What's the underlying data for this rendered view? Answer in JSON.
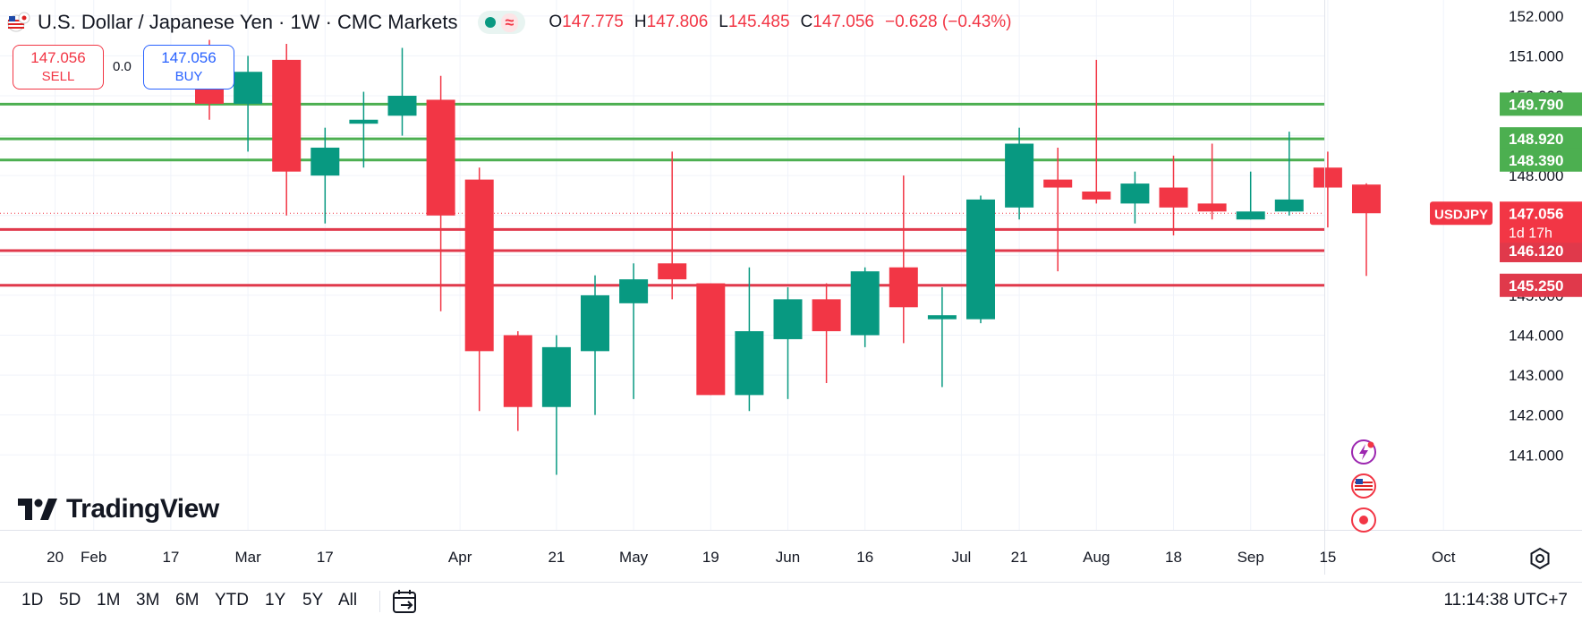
{
  "header": {
    "symbol_title": "U.S. Dollar / Japanese Yen · 1W · CMC Markets",
    "ohlc": {
      "o_label": "O",
      "o_value": "147.775",
      "h_label": "H",
      "h_value": "147.806",
      "l_label": "L",
      "l_value": "145.485",
      "c_label": "C",
      "c_value": "147.056",
      "change": "−0.628 (−0.43%)"
    }
  },
  "trade": {
    "sell_price": "147.056",
    "sell_label": "SELL",
    "spread": "0.0",
    "buy_price": "147.056",
    "buy_label": "BUY"
  },
  "logo_text": "TradingView",
  "timeframes": [
    "1D",
    "5D",
    "1M",
    "3M",
    "6M",
    "YTD",
    "1Y",
    "5Y",
    "All"
  ],
  "clock": "11:14:38 UTC+7",
  "icons": {
    "flag": "us-jp-flag-icon",
    "status": "market-status-icon",
    "settings": "gear-icon",
    "calendar": "date-range-icon"
  },
  "colors": {
    "up": "#089981",
    "down": "#f23645",
    "resistance": "#4caf50",
    "support": "#e0394b",
    "buy": "#2962ff"
  },
  "chart_data": {
    "type": "candlestick",
    "symbol_badge": "USDJPY",
    "countdown": "1d 17h",
    "last_price": 147.056,
    "ylim": [
      140.4,
      152.4
    ],
    "y_ticks": [
      141.0,
      142.0,
      143.0,
      144.0,
      145.0,
      146.0,
      147.0,
      148.0,
      149.0,
      150.0,
      151.0,
      152.0
    ],
    "y_tick_labels": [
      "141.000",
      "142.000",
      "143.000",
      "144.000",
      "145.000",
      "146.000",
      "147.000",
      "148.000",
      "149.000",
      "150.000",
      "151.000",
      "152.000"
    ],
    "x_tick_labels": [
      {
        "label": "20",
        "index": -4
      },
      {
        "label": "Feb",
        "index": -3
      },
      {
        "label": "17",
        "index": -1
      },
      {
        "label": "Mar",
        "index": 1
      },
      {
        "label": "17",
        "index": 3
      },
      {
        "label": "Apr",
        "index": 6.5
      },
      {
        "label": "21",
        "index": 9
      },
      {
        "label": "May",
        "index": 11
      },
      {
        "label": "19",
        "index": 13
      },
      {
        "label": "Jun",
        "index": 15
      },
      {
        "label": "16",
        "index": 17
      },
      {
        "label": "Jul",
        "index": 19.5
      },
      {
        "label": "21",
        "index": 21
      },
      {
        "label": "Aug",
        "index": 23
      },
      {
        "label": "18",
        "index": 25
      },
      {
        "label": "Sep",
        "index": 27
      },
      {
        "label": "15",
        "index": 29
      },
      {
        "label": "Oct",
        "index": 32
      }
    ],
    "candles": [
      {
        "o": 151.1,
        "h": 151.4,
        "l": 149.4,
        "c": 149.8
      },
      {
        "o": 149.8,
        "h": 151.0,
        "l": 148.6,
        "c": 150.6
      },
      {
        "o": 150.9,
        "h": 151.3,
        "l": 147.0,
        "c": 148.1
      },
      {
        "o": 148.0,
        "h": 149.2,
        "l": 146.8,
        "c": 148.7
      },
      {
        "o": 149.3,
        "h": 150.1,
        "l": 148.2,
        "c": 149.4
      },
      {
        "o": 149.5,
        "h": 151.2,
        "l": 149.0,
        "c": 150.0
      },
      {
        "o": 149.9,
        "h": 150.5,
        "l": 144.6,
        "c": 147.0
      },
      {
        "o": 147.9,
        "h": 148.2,
        "l": 142.1,
        "c": 143.6
      },
      {
        "o": 144.0,
        "h": 144.1,
        "l": 141.6,
        "c": 142.2
      },
      {
        "o": 142.2,
        "h": 144.0,
        "l": 140.5,
        "c": 143.7
      },
      {
        "o": 143.6,
        "h": 145.5,
        "l": 142.0,
        "c": 145.0
      },
      {
        "o": 144.8,
        "h": 145.8,
        "l": 142.4,
        "c": 145.4
      },
      {
        "o": 145.8,
        "h": 148.6,
        "l": 144.9,
        "c": 145.4
      },
      {
        "o": 145.3,
        "h": 145.2,
        "l": 142.5,
        "c": 142.5
      },
      {
        "o": 142.5,
        "h": 145.7,
        "l": 142.1,
        "c": 144.1
      },
      {
        "o": 143.9,
        "h": 145.2,
        "l": 142.4,
        "c": 144.9
      },
      {
        "o": 144.9,
        "h": 145.3,
        "l": 142.8,
        "c": 144.1
      },
      {
        "o": 144.0,
        "h": 145.7,
        "l": 143.7,
        "c": 145.6
      },
      {
        "o": 145.7,
        "h": 148.0,
        "l": 143.8,
        "c": 144.7
      },
      {
        "o": 144.4,
        "h": 145.2,
        "l": 142.7,
        "c": 144.5
      },
      {
        "o": 144.4,
        "h": 147.5,
        "l": 144.3,
        "c": 147.4
      },
      {
        "o": 147.2,
        "h": 149.2,
        "l": 146.9,
        "c": 148.8
      },
      {
        "o": 147.9,
        "h": 148.7,
        "l": 145.6,
        "c": 147.7
      },
      {
        "o": 147.6,
        "h": 150.9,
        "l": 147.3,
        "c": 147.4
      },
      {
        "o": 147.3,
        "h": 148.1,
        "l": 146.8,
        "c": 147.8
      },
      {
        "o": 147.7,
        "h": 148.5,
        "l": 146.5,
        "c": 147.2
      },
      {
        "o": 147.3,
        "h": 148.8,
        "l": 146.9,
        "c": 147.1
      },
      {
        "o": 146.9,
        "h": 148.1,
        "l": 146.9,
        "c": 147.1
      },
      {
        "o": 147.1,
        "h": 149.1,
        "l": 147.0,
        "c": 147.4
      },
      {
        "o": 148.2,
        "h": 148.6,
        "l": 146.7,
        "c": 147.7
      },
      {
        "o": 147.775,
        "h": 147.806,
        "l": 145.485,
        "c": 147.056
      }
    ],
    "levels": [
      {
        "value": 149.79,
        "label": "149.790",
        "kind": "resistance"
      },
      {
        "value": 148.92,
        "label": "148.920",
        "kind": "resistance"
      },
      {
        "value": 148.39,
        "label": "148.390",
        "kind": "resistance"
      },
      {
        "value": 146.65,
        "label": "146.650",
        "kind": "support"
      },
      {
        "value": 146.12,
        "label": "146.120",
        "kind": "support"
      },
      {
        "value": 145.25,
        "label": "145.250",
        "kind": "support"
      }
    ]
  }
}
